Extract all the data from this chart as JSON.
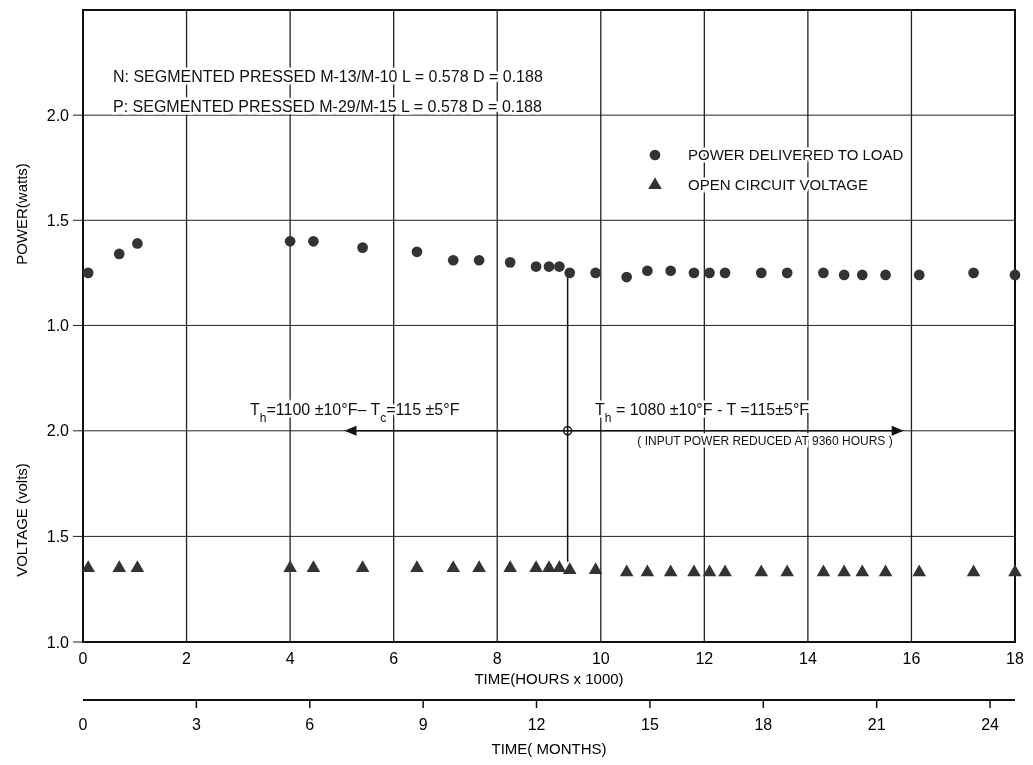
{
  "chart_data": [
    {
      "type": "scatter",
      "ylabel": "POWER(watts)",
      "xlim": [
        0,
        18
      ],
      "xticks": [
        0,
        2,
        4,
        6,
        8,
        10,
        12,
        14,
        16,
        18
      ],
      "ylim": [
        0.75,
        2.5
      ],
      "yticks": [
        {
          "value": 1,
          "label": "1.0"
        },
        {
          "value": 1.5,
          "label": "1.5"
        },
        {
          "value": 2,
          "label": "2.0"
        }
      ],
      "tick_labels": "y",
      "grid": true,
      "legend": "top right",
      "x": [
        0.1,
        0.7,
        1.05,
        4.0,
        4.45,
        5.4,
        6.45,
        7.15,
        7.65,
        8.25,
        8.75,
        9.0,
        9.2,
        9.4,
        9.9,
        10.5,
        10.9,
        11.35,
        11.8,
        12.1,
        12.4,
        13.1,
        13.6,
        14.3,
        14.7,
        15.05,
        15.5,
        16.15,
        17.2,
        18.0
      ],
      "series": [
        {
          "name": "POWER DELIVERED TO LOAD",
          "color": "#333333",
          "marker": "circle",
          "values": [
            1.25,
            1.34,
            1.39,
            1.4,
            1.4,
            1.37,
            1.35,
            1.31,
            1.31,
            1.3,
            1.28,
            1.28,
            1.28,
            1.25,
            1.25,
            1.23,
            1.26,
            1.26,
            1.25,
            1.25,
            1.25,
            1.25,
            1.25,
            1.25,
            1.24,
            1.24,
            1.24,
            1.24,
            1.25,
            1.24
          ]
        }
      ],
      "annotations": [
        "N: SEGMENTED PRESSED M-13/M-10  L = 0.578  D = 0.188",
        "P: SEGMENTED PRESSED M-29/M-15  L = 0.578  D = 0.188"
      ],
      "ref_lines": [
        {
          "axis": "x",
          "value": 9.36
        }
      ]
    },
    {
      "type": "scatter",
      "ylabel": "VOLTAGE (volts)",
      "xlabel": "TIME(HOURS x 1000)",
      "xlim": [
        0,
        18
      ],
      "xticks": [
        0,
        2,
        4,
        6,
        8,
        10,
        12,
        14,
        16,
        18
      ],
      "ylim": [
        1.0,
        2.25
      ],
      "yticks": [
        {
          "value": 1,
          "label": "1.0"
        },
        {
          "value": 1.5,
          "label": "1.5"
        },
        {
          "value": 2,
          "label": "2.0"
        }
      ],
      "grid": true,
      "legend": "top right",
      "x2lim": [
        0,
        24.66
      ],
      "x2ticks": [
        0,
        3,
        6,
        9,
        12,
        15,
        18,
        21,
        24
      ],
      "x2label": "TIME( MONTHS)",
      "x": [
        0.1,
        0.7,
        1.05,
        4.0,
        4.45,
        5.4,
        6.45,
        7.15,
        7.65,
        8.25,
        8.75,
        9.0,
        9.2,
        9.4,
        9.9,
        10.5,
        10.9,
        11.35,
        11.8,
        12.1,
        12.4,
        13.1,
        13.6,
        14.3,
        14.7,
        15.05,
        15.5,
        16.15,
        17.2,
        18.0
      ],
      "series": [
        {
          "name": "OPEN CIRCUIT VOLTAGE",
          "color": "#333333",
          "marker": "triangle",
          "values": [
            1.35,
            1.35,
            1.35,
            1.35,
            1.35,
            1.35,
            1.35,
            1.35,
            1.35,
            1.35,
            1.35,
            1.35,
            1.35,
            1.34,
            1.34,
            1.33,
            1.33,
            1.33,
            1.33,
            1.33,
            1.33,
            1.33,
            1.33,
            1.33,
            1.33,
            1.33,
            1.33,
            1.33,
            1.33,
            1.33
          ]
        }
      ],
      "annotations": [
        "T$_{h}$=1100 ±10°F– T$_{c}$=115 ±5°F",
        "T$_{h}$ = 1080 ±10°F - T   =115±5°F",
        "( INPUT POWER REDUCED AT 9360 HOURS )"
      ],
      "ref_lines": [
        {
          "axis": "x",
          "value": 9.36
        }
      ]
    }
  ]
}
